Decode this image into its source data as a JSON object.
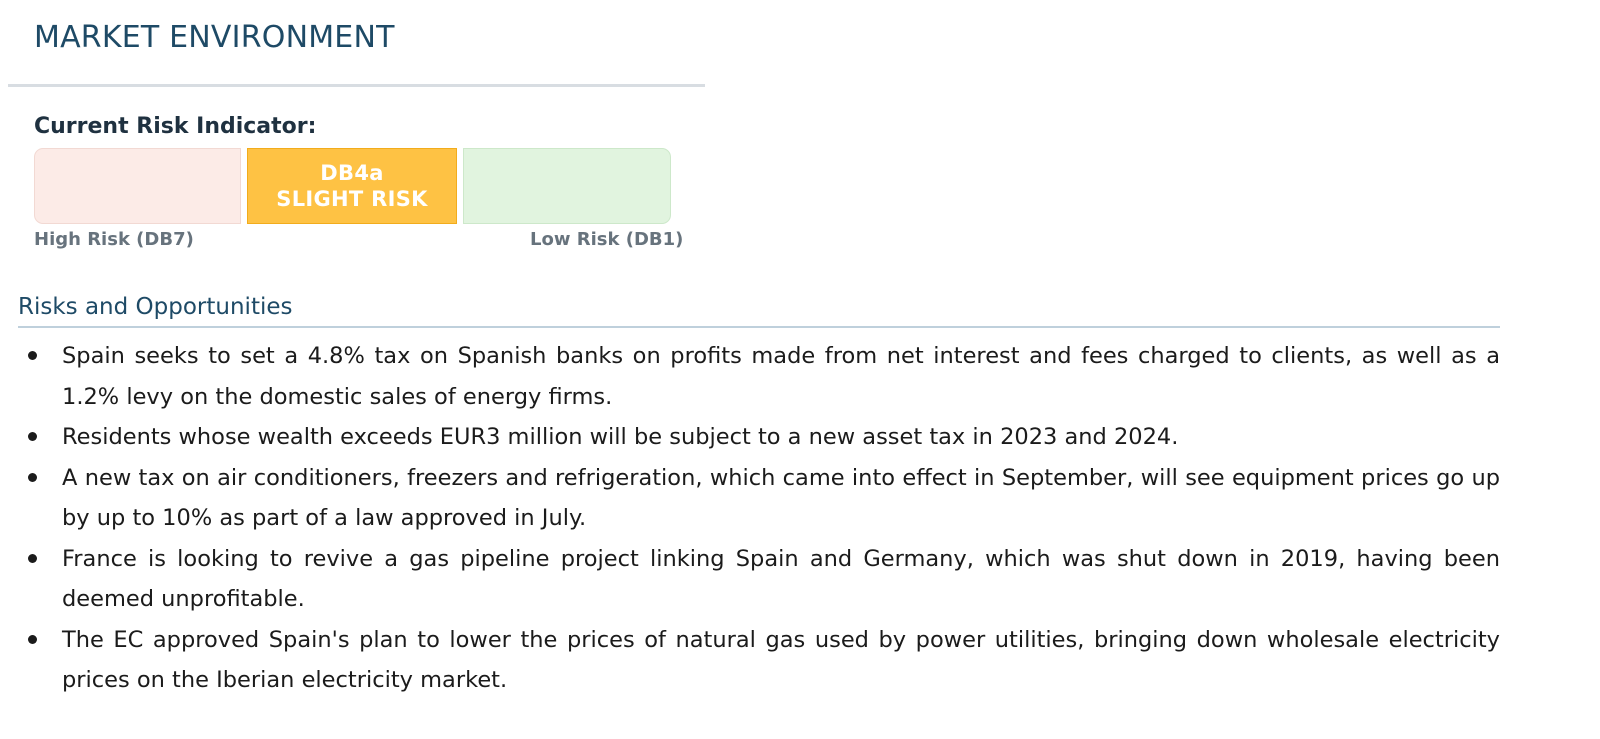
{
  "section": {
    "title": "MARKET ENVIRONMENT"
  },
  "risk_indicator": {
    "label": "Current Risk Indicator:",
    "current_code": "DB4a",
    "current_level": "SLIGHT RISK",
    "high_label": "High Risk (DB7)",
    "low_label": "Low Risk (DB1)",
    "colors": {
      "high": "#fcebe7",
      "current": "#fec244",
      "low": "#e1f4df"
    }
  },
  "risks": {
    "heading": "Risks and Opportunities",
    "items": [
      "Spain seeks to set a 4.8% tax on Spanish banks on profits made from net interest and fees charged to clients, as well as a 1.2% levy on the domestic sales of energy firms.",
      "Residents whose wealth exceeds EUR3 million will be subject to a new asset tax in 2023 and 2024.",
      "A new tax on air conditioners, freezers and refrigeration, which came into effect in September, will see equipment prices go up by up to 10% as part of a law approved in July.",
      "France is looking to revive a gas pipeline project linking Spain and Germany, which was shut down in 2019, having been deemed unprofitable.",
      "The EC approved Spain's plan to lower the prices of natural gas used by power utilities, bringing down wholesale electricity prices on the Iberian electricity market."
    ]
  }
}
